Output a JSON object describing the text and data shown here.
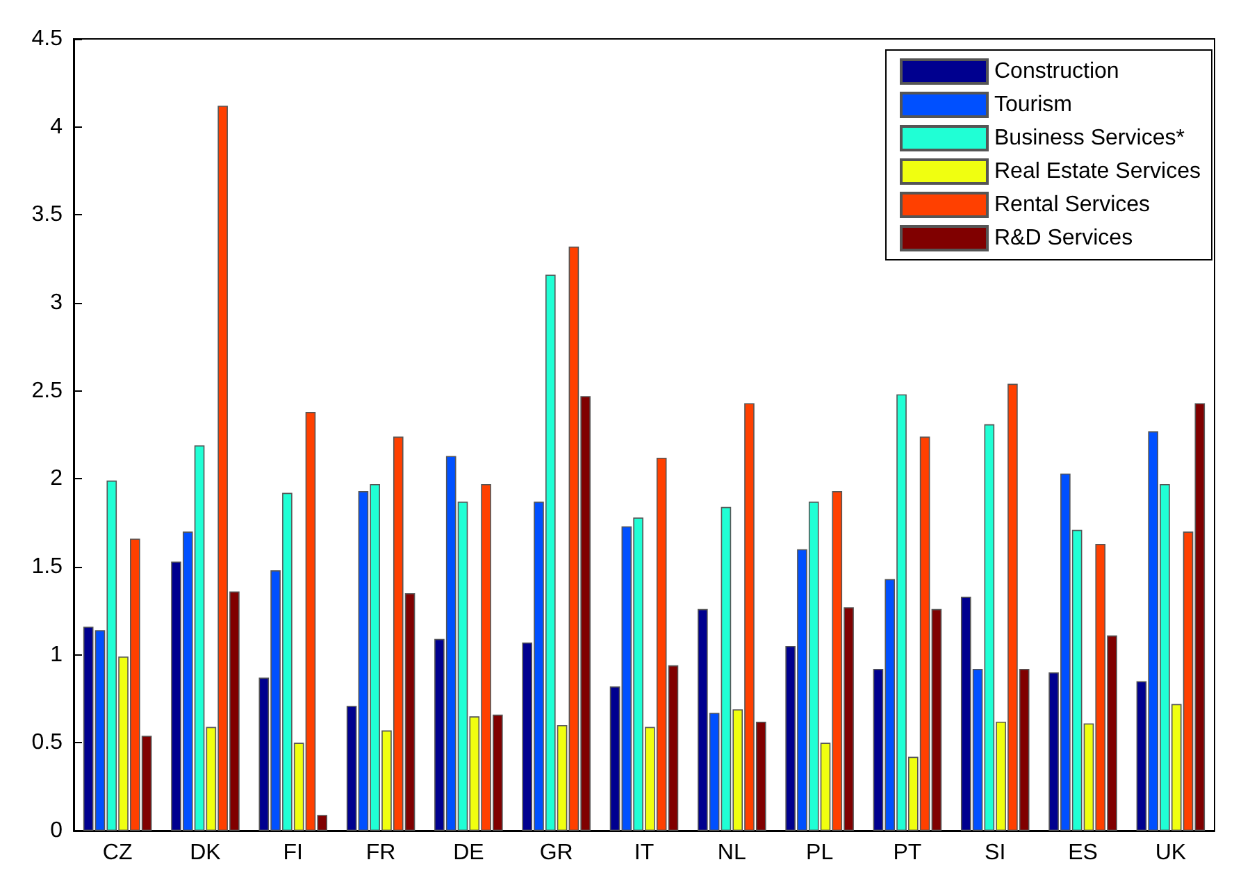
{
  "chart_data": {
    "type": "bar",
    "categories": [
      "CZ",
      "DK",
      "FI",
      "FR",
      "DE",
      "GR",
      "IT",
      "NL",
      "PL",
      "PT",
      "SI",
      "ES",
      "UK"
    ],
    "series": [
      {
        "name": "Construction",
        "color": "#00008f",
        "values": [
          1.16,
          1.53,
          0.87,
          0.71,
          1.09,
          1.07,
          0.82,
          1.26,
          1.05,
          0.92,
          1.33,
          0.9,
          0.85
        ]
      },
      {
        "name": "Tourism",
        "color": "#0050ff",
        "values": [
          1.14,
          1.7,
          1.48,
          1.93,
          2.13,
          1.87,
          1.73,
          0.67,
          1.6,
          1.43,
          0.92,
          2.03,
          2.27
        ]
      },
      {
        "name": "Business Services*",
        "color": "#20ffd5",
        "values": [
          1.99,
          2.19,
          1.92,
          1.97,
          1.87,
          3.16,
          1.78,
          1.84,
          1.87,
          2.48,
          2.31,
          1.71,
          1.97
        ]
      },
      {
        "name": "Real Estate Services",
        "color": "#f0ff10",
        "values": [
          0.99,
          0.59,
          0.5,
          0.57,
          0.65,
          0.6,
          0.59,
          0.69,
          0.5,
          0.42,
          0.62,
          0.61,
          0.72
        ]
      },
      {
        "name": "Rental Services",
        "color": "#ff4000",
        "values": [
          1.66,
          4.12,
          2.38,
          2.24,
          1.97,
          3.32,
          2.12,
          2.43,
          1.93,
          2.24,
          2.54,
          1.63,
          1.7
        ]
      },
      {
        "name": "R&D Services",
        "color": "#800000",
        "values": [
          0.54,
          1.36,
          0.09,
          1.35,
          0.66,
          2.47,
          0.94,
          0.62,
          1.27,
          1.26,
          0.92,
          1.11,
          2.43
        ]
      }
    ],
    "ylim": [
      0,
      4.5
    ],
    "yticks": [
      0,
      0.5,
      1,
      1.5,
      2,
      2.5,
      3,
      3.5,
      4,
      4.5
    ],
    "grid": false,
    "legend": "top right"
  }
}
